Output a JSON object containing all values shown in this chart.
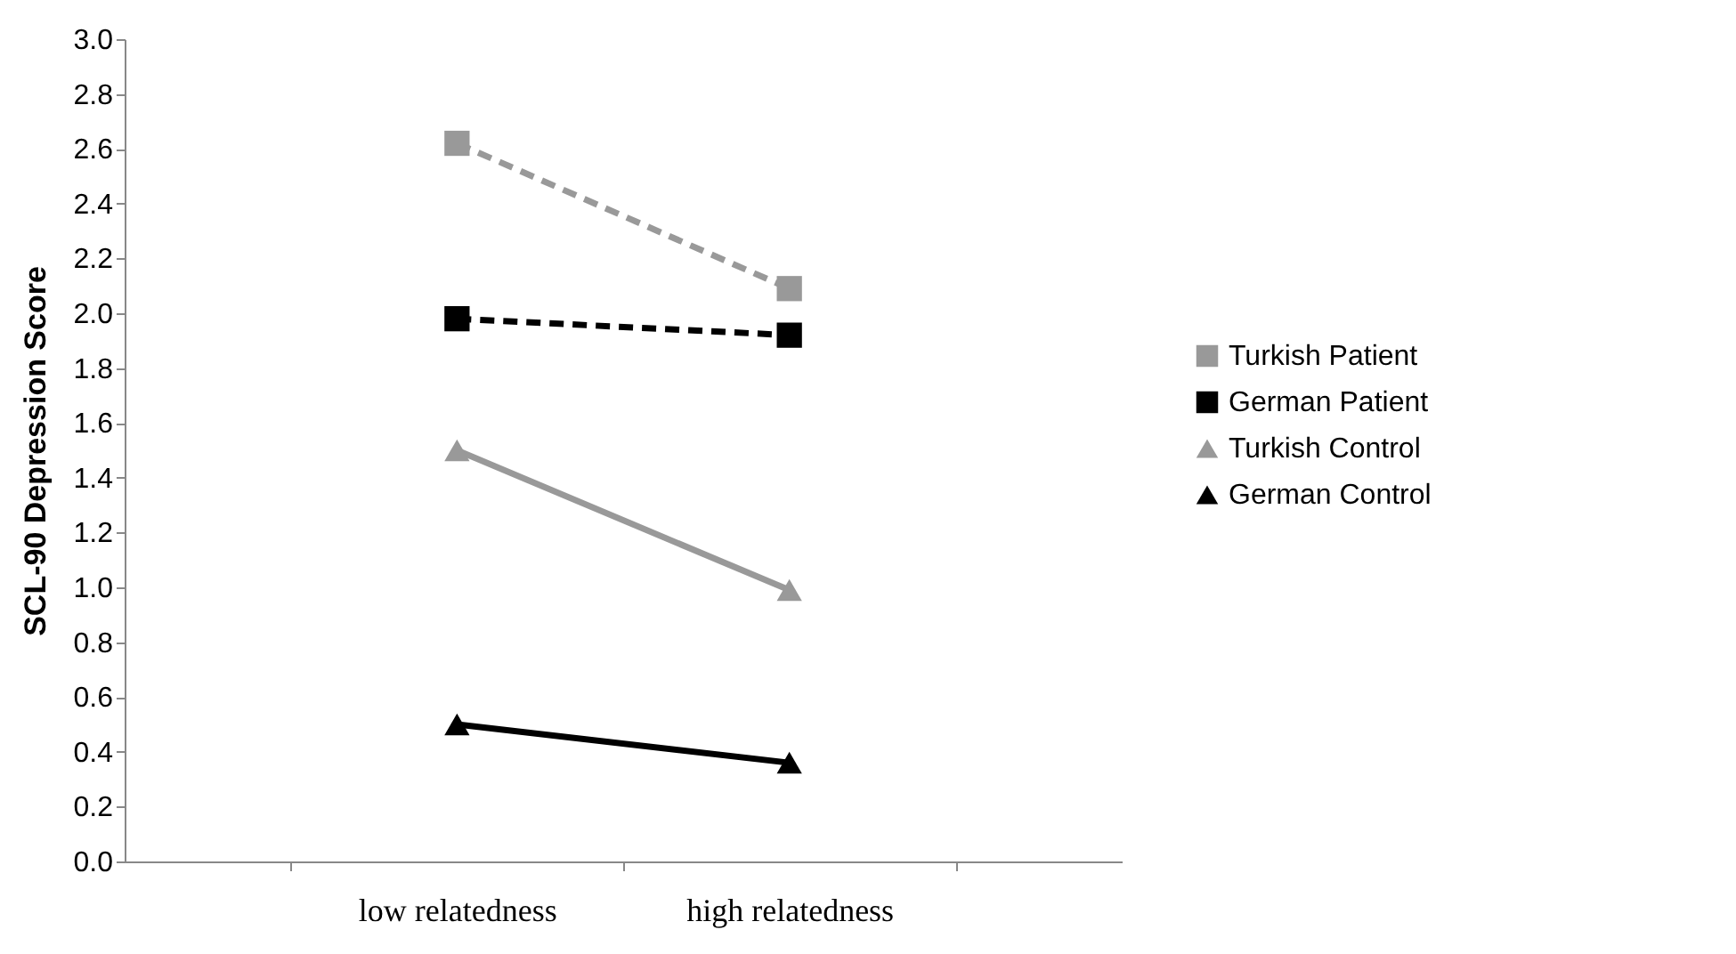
{
  "chart_data": {
    "type": "line",
    "ylabel": "SCL-90 Depression Score",
    "categories": [
      "low relatedness",
      "high relatedness"
    ],
    "series": [
      {
        "name": "Turkish Patient",
        "color": "#999999",
        "values": [
          2.62,
          2.09
        ],
        "marker": "square",
        "line_style": "dashed"
      },
      {
        "name": "German Patient",
        "color": "#000000",
        "values": [
          1.98,
          1.92
        ],
        "marker": "square",
        "line_style": "dashed"
      },
      {
        "name": "Turkish Control",
        "color": "#999999",
        "values": [
          1.5,
          0.99
        ],
        "marker": "triangle",
        "line_style": "solid"
      },
      {
        "name": "German Control",
        "color": "#000000",
        "values": [
          0.5,
          0.36
        ],
        "marker": "triangle",
        "line_style": "solid"
      }
    ],
    "ylim": [
      0,
      3
    ],
    "yticks": [
      {
        "value": 0,
        "label": "0.0"
      },
      0.2,
      0.4,
      0.6,
      0.8,
      {
        "value": 1,
        "label": "1.0"
      },
      1.2,
      1.4,
      1.6,
      1.8,
      {
        "value": 2,
        "label": "2.0"
      },
      2.2,
      2.4,
      2.6,
      2.8,
      {
        "value": 3,
        "label": "3.0"
      }
    ],
    "grid": false,
    "legend": "right"
  }
}
